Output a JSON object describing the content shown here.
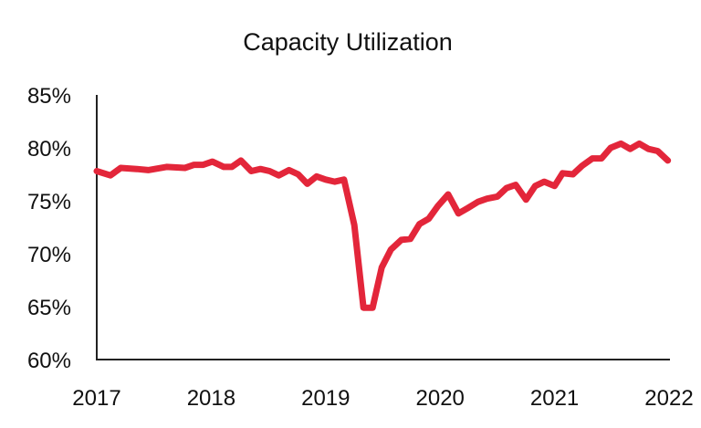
{
  "chart_data": {
    "type": "line",
    "title": "Capacity Utilization",
    "xlabel": "",
    "ylabel": "",
    "xlim": [
      2017,
      2022
    ],
    "ylim": [
      60,
      85
    ],
    "x_ticks": [
      "2017",
      "2018",
      "2019",
      "2020",
      "2021",
      "2022"
    ],
    "y_ticks": [
      "60%",
      "65%",
      "70%",
      "75%",
      "80%",
      "85%"
    ],
    "grid": false,
    "legend": "none",
    "line_color": "#e3263a",
    "series": [
      {
        "name": "Capacity Utilization",
        "x": [
          2017.0,
          2017.12,
          2017.21,
          2017.35,
          2017.45,
          2017.61,
          2017.77,
          2017.85,
          2017.93,
          2018.01,
          2018.11,
          2018.18,
          2018.26,
          2018.35,
          2018.43,
          2018.51,
          2018.59,
          2018.68,
          2018.76,
          2018.84,
          2018.92,
          2019.0,
          2019.08,
          2019.16,
          2019.25,
          2019.33,
          2019.41,
          2019.49,
          2019.57,
          2019.66,
          2019.74,
          2019.82,
          2019.9,
          2019.98,
          2020.07,
          2020.16,
          2020.24,
          2020.33,
          2020.41,
          2020.5,
          2020.58,
          2020.66,
          2020.75,
          2020.83,
          2020.91,
          2021.0,
          2021.07,
          2021.16,
          2021.24,
          2021.33,
          2021.41,
          2021.49,
          2021.58,
          2021.66,
          2021.74,
          2021.82,
          2021.9,
          2021.99
        ],
        "values": [
          77.8,
          77.4,
          78.1,
          78.0,
          77.9,
          78.2,
          78.1,
          78.4,
          78.4,
          78.7,
          78.2,
          78.2,
          78.8,
          77.8,
          78.0,
          77.8,
          77.4,
          77.9,
          77.5,
          76.6,
          77.3,
          77.0,
          76.8,
          77.0,
          72.7,
          64.9,
          64.9,
          68.7,
          70.4,
          71.3,
          71.4,
          72.8,
          73.3,
          74.5,
          75.6,
          73.8,
          74.3,
          74.9,
          75.2,
          75.4,
          76.2,
          76.5,
          75.1,
          76.4,
          76.8,
          76.4,
          77.6,
          77.5,
          78.3,
          79.0,
          79.0,
          80.0,
          80.4,
          79.9,
          80.4,
          79.9,
          79.7,
          78.8
        ]
      }
    ]
  }
}
